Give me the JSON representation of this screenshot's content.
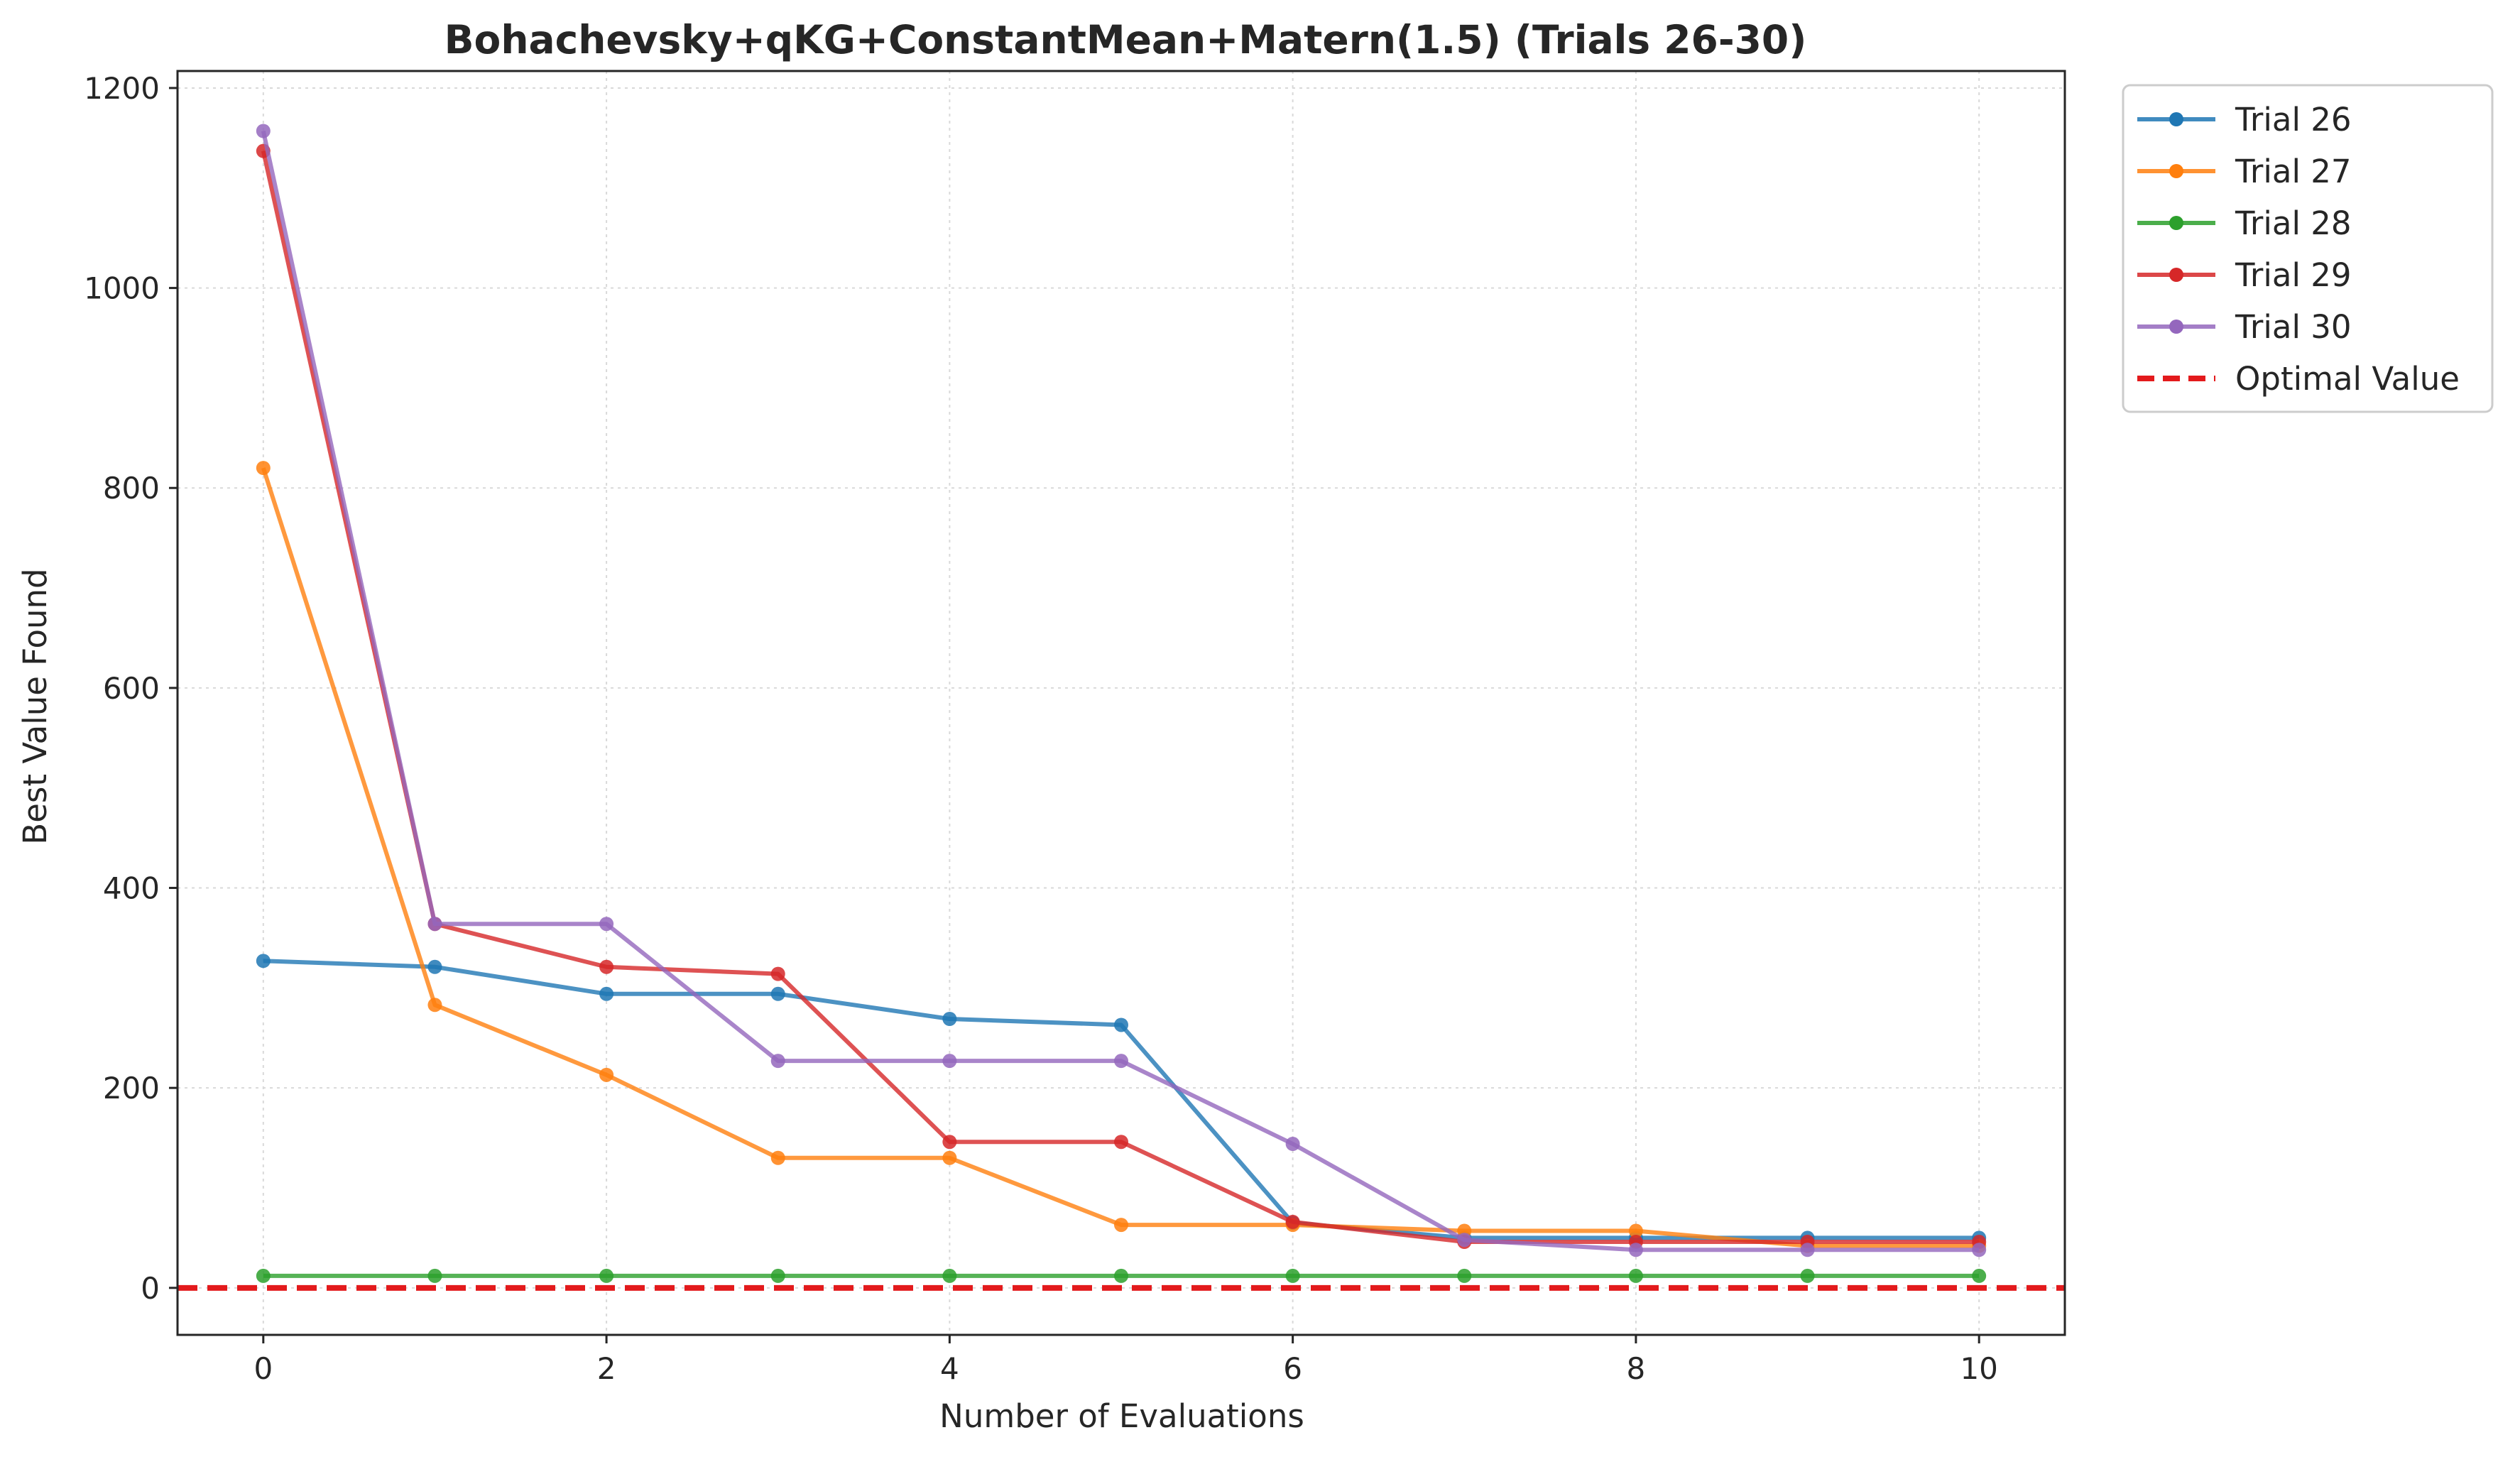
{
  "chart_data": {
    "type": "line",
    "title": "Bohachevsky+qKG+ConstantMean+Matern(1.5) (Trials 26-30)",
    "xlabel": "Number of Evaluations",
    "ylabel": "Best Value Found",
    "xlim": [
      -0.5,
      10.5
    ],
    "ylim": [
      -47,
      1217
    ],
    "xticks": [
      0,
      2,
      4,
      6,
      8,
      10
    ],
    "yticks": [
      0,
      200,
      400,
      600,
      800,
      1000,
      1200
    ],
    "grid": true,
    "legend_position": "outside-top-right",
    "x": [
      0,
      1,
      2,
      3,
      4,
      5,
      6,
      7,
      8,
      9,
      10
    ],
    "series": [
      {
        "name": "Trial 26",
        "color": "#1f77b4",
        "values": [
          327,
          321,
          294,
          294,
          269,
          263,
          65,
          50,
          50,
          50,
          50
        ]
      },
      {
        "name": "Trial 27",
        "color": "#ff7f0e",
        "values": [
          820,
          283,
          213,
          130,
          130,
          63,
          63,
          57,
          57,
          42,
          42
        ]
      },
      {
        "name": "Trial 28",
        "color": "#2ca02c",
        "values": [
          12,
          12,
          12,
          12,
          12,
          12,
          12,
          12,
          12,
          12,
          12
        ]
      },
      {
        "name": "Trial 29",
        "color": "#d62728",
        "values": [
          1137,
          364,
          321,
          314,
          146,
          146,
          66,
          46,
          46,
          46,
          46
        ]
      },
      {
        "name": "Trial 30",
        "color": "#9467bd",
        "values": [
          1157,
          364,
          364,
          227,
          227,
          227,
          144,
          48,
          38,
          38,
          38
        ]
      }
    ],
    "reference_line": {
      "name": "Optimal Value",
      "value": 0,
      "color": "#e31a1c",
      "style": "dashed"
    }
  }
}
